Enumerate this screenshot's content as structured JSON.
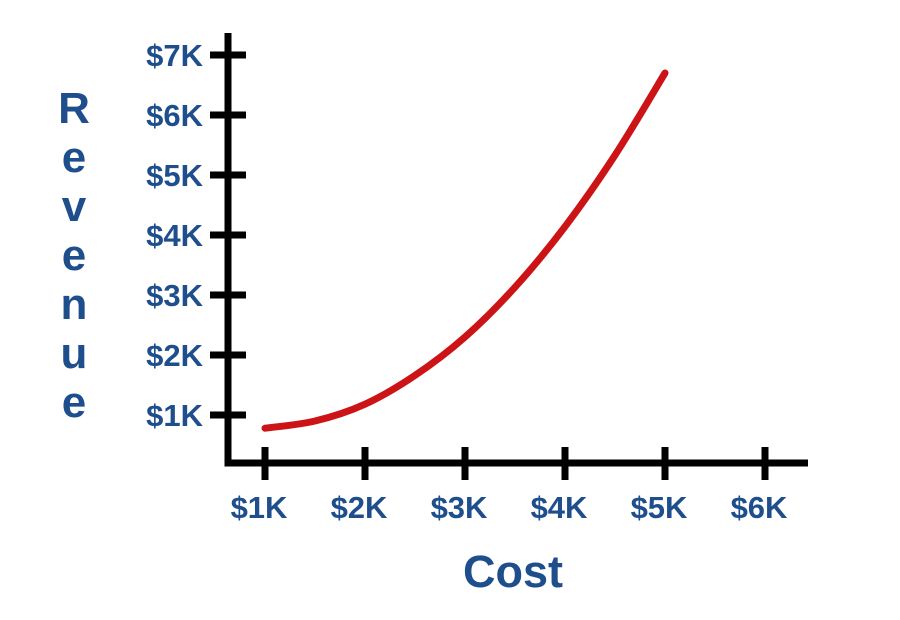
{
  "chart_data": {
    "type": "line",
    "title": "",
    "xlabel": "Cost",
    "ylabel": "Revenue",
    "grid": false,
    "legend_position": "none",
    "x_ticks": {
      "values": [
        1,
        2,
        3,
        4,
        5,
        6
      ],
      "labels": [
        "$1K",
        "$2K",
        "$3K",
        "$4K",
        "$5K",
        "$6K"
      ]
    },
    "y_ticks": {
      "values": [
        1,
        2,
        3,
        4,
        5,
        6,
        7
      ],
      "labels": [
        "$1K",
        "$2K",
        "$3K",
        "$4K",
        "$5K",
        "$6K",
        "$7K"
      ]
    },
    "xlim": [
      0.55,
      6.85
    ],
    "ylim": [
      0.2,
      7.35
    ],
    "series": [
      {
        "name": "revenue-vs-cost-curve",
        "color": "#cc1417",
        "x": [
          1,
          1.5,
          2,
          2.5,
          3,
          3.5,
          4,
          4.5,
          5
        ],
        "y": [
          0.78,
          0.9,
          1.18,
          1.66,
          2.3,
          3.13,
          4.14,
          5.33,
          6.7
        ]
      }
    ],
    "colors": {
      "axis": "#000000",
      "labels": "#1e4e8c",
      "background": "#ffffff"
    }
  }
}
